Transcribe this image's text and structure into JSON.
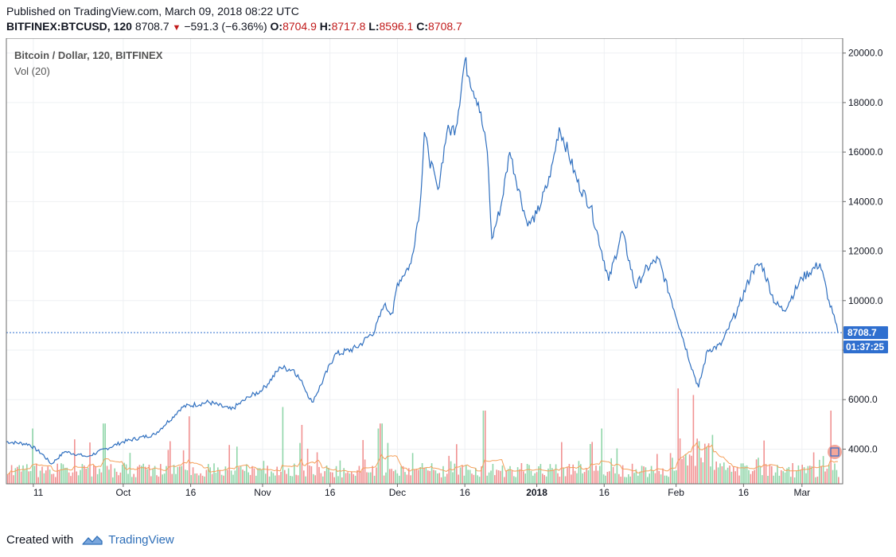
{
  "header": {
    "published": "Published on TradingView.com, March 09, 2018 08:22 UTC",
    "symbol": "BITFINEX:BTCUSD, 120",
    "last": "8708.7",
    "change": "−591.3 (−6.36%)",
    "o_label": "O:",
    "o_value": "8704.9",
    "h_label": "H:",
    "h_value": "8717.8",
    "l_label": "L:",
    "l_value": "8596.1",
    "c_label": "C:",
    "c_value": "8708.7"
  },
  "legend": {
    "title": "Bitcoin / Dollar, 120, BITFINEX",
    "volume": "Vol (20)"
  },
  "price_label": "8708.7",
  "countdown_label": "01:37:25",
  "footer": {
    "created_with": "Created with",
    "brand": "TradingView"
  },
  "colors": {
    "line": "#2f6fbf",
    "vol_up": "#7ccf9a",
    "vol_down": "#ef7f7f",
    "vol_ma": "#f5a05a",
    "badge": "#2f6fcf"
  },
  "chart_data": {
    "type": "line",
    "title": "Bitcoin / Dollar, 120, BITFINEX",
    "ylim": [
      2600,
      20600
    ],
    "y_ticks": [
      4000,
      6000,
      8000,
      10000,
      12000,
      14000,
      16000,
      18000,
      20000
    ],
    "y_tick_labels": [
      "4000.0",
      "6000.0",
      "8000.0",
      "10000.0",
      "12000.0",
      "14000.0",
      "16000.0",
      "18000.0",
      "20000.0"
    ],
    "x_tick_labels": [
      "11",
      "Oct",
      "16",
      "Nov",
      "16",
      "Dec",
      "16",
      "2018",
      "16",
      "Feb",
      "16",
      "Mar"
    ],
    "x_tick_dates": [
      "2017-09-11",
      "2017-10-01",
      "2017-10-16",
      "2017-11-01",
      "2017-11-16",
      "2017-12-01",
      "2017-12-16",
      "2018-01-01",
      "2018-01-16",
      "2018-02-01",
      "2018-02-16",
      "2018-03-01"
    ],
    "x_range": [
      "2017-09-05",
      "2018-03-09"
    ],
    "last_value": 8708.7,
    "grid": true,
    "series": [
      {
        "dates": [
          "2017-09-05",
          "2017-09-10",
          "2017-09-13",
          "2017-09-15",
          "2017-09-18",
          "2017-09-23",
          "2017-10-01",
          "2017-10-08",
          "2017-10-12",
          "2017-10-14",
          "2017-10-20",
          "2017-10-25",
          "2017-10-29",
          "2017-11-01",
          "2017-11-05",
          "2017-11-08",
          "2017-11-10",
          "2017-11-12",
          "2017-11-14",
          "2017-11-17",
          "2017-11-22",
          "2017-11-26",
          "2017-11-28",
          "2017-11-30",
          "2017-12-01",
          "2017-12-04",
          "2017-12-06",
          "2017-12-07",
          "2017-12-08",
          "2017-12-10",
          "2017-12-12",
          "2017-12-14",
          "2017-12-16",
          "2017-12-17",
          "2017-12-19",
          "2017-12-21",
          "2017-12-22",
          "2017-12-24",
          "2017-12-26",
          "2017-12-28",
          "2017-12-30",
          "2018-01-01",
          "2018-01-04",
          "2018-01-06",
          "2018-01-08",
          "2018-01-10",
          "2018-01-13",
          "2018-01-16",
          "2018-01-17",
          "2018-01-20",
          "2018-01-23",
          "2018-01-25",
          "2018-01-28",
          "2018-01-31",
          "2018-02-02",
          "2018-02-05",
          "2018-02-06",
          "2018-02-08",
          "2018-02-11",
          "2018-02-15",
          "2018-02-18",
          "2018-02-20",
          "2018-02-23",
          "2018-02-25",
          "2018-03-01",
          "2018-03-05",
          "2018-03-07",
          "2018-03-09"
        ],
        "values": [
          4300,
          4200,
          3800,
          3400,
          3900,
          3700,
          4300,
          4600,
          5300,
          5700,
          5900,
          5600,
          6100,
          6400,
          7300,
          7200,
          6600,
          5900,
          6600,
          7800,
          8100,
          8800,
          9800,
          9500,
          10700,
          11500,
          13800,
          16800,
          15800,
          14500,
          16800,
          17000,
          19700,
          19000,
          18000,
          16000,
          12500,
          13800,
          16000,
          14500,
          13000,
          13500,
          15000,
          17000,
          16000,
          14800,
          13800,
          11600,
          10800,
          12800,
          10500,
          11200,
          11700,
          10000,
          8800,
          7000,
          6500,
          8000,
          8200,
          9800,
          11200,
          11500,
          9900,
          9600,
          10900,
          11500,
          10000,
          8708.7
        ]
      }
    ]
  }
}
